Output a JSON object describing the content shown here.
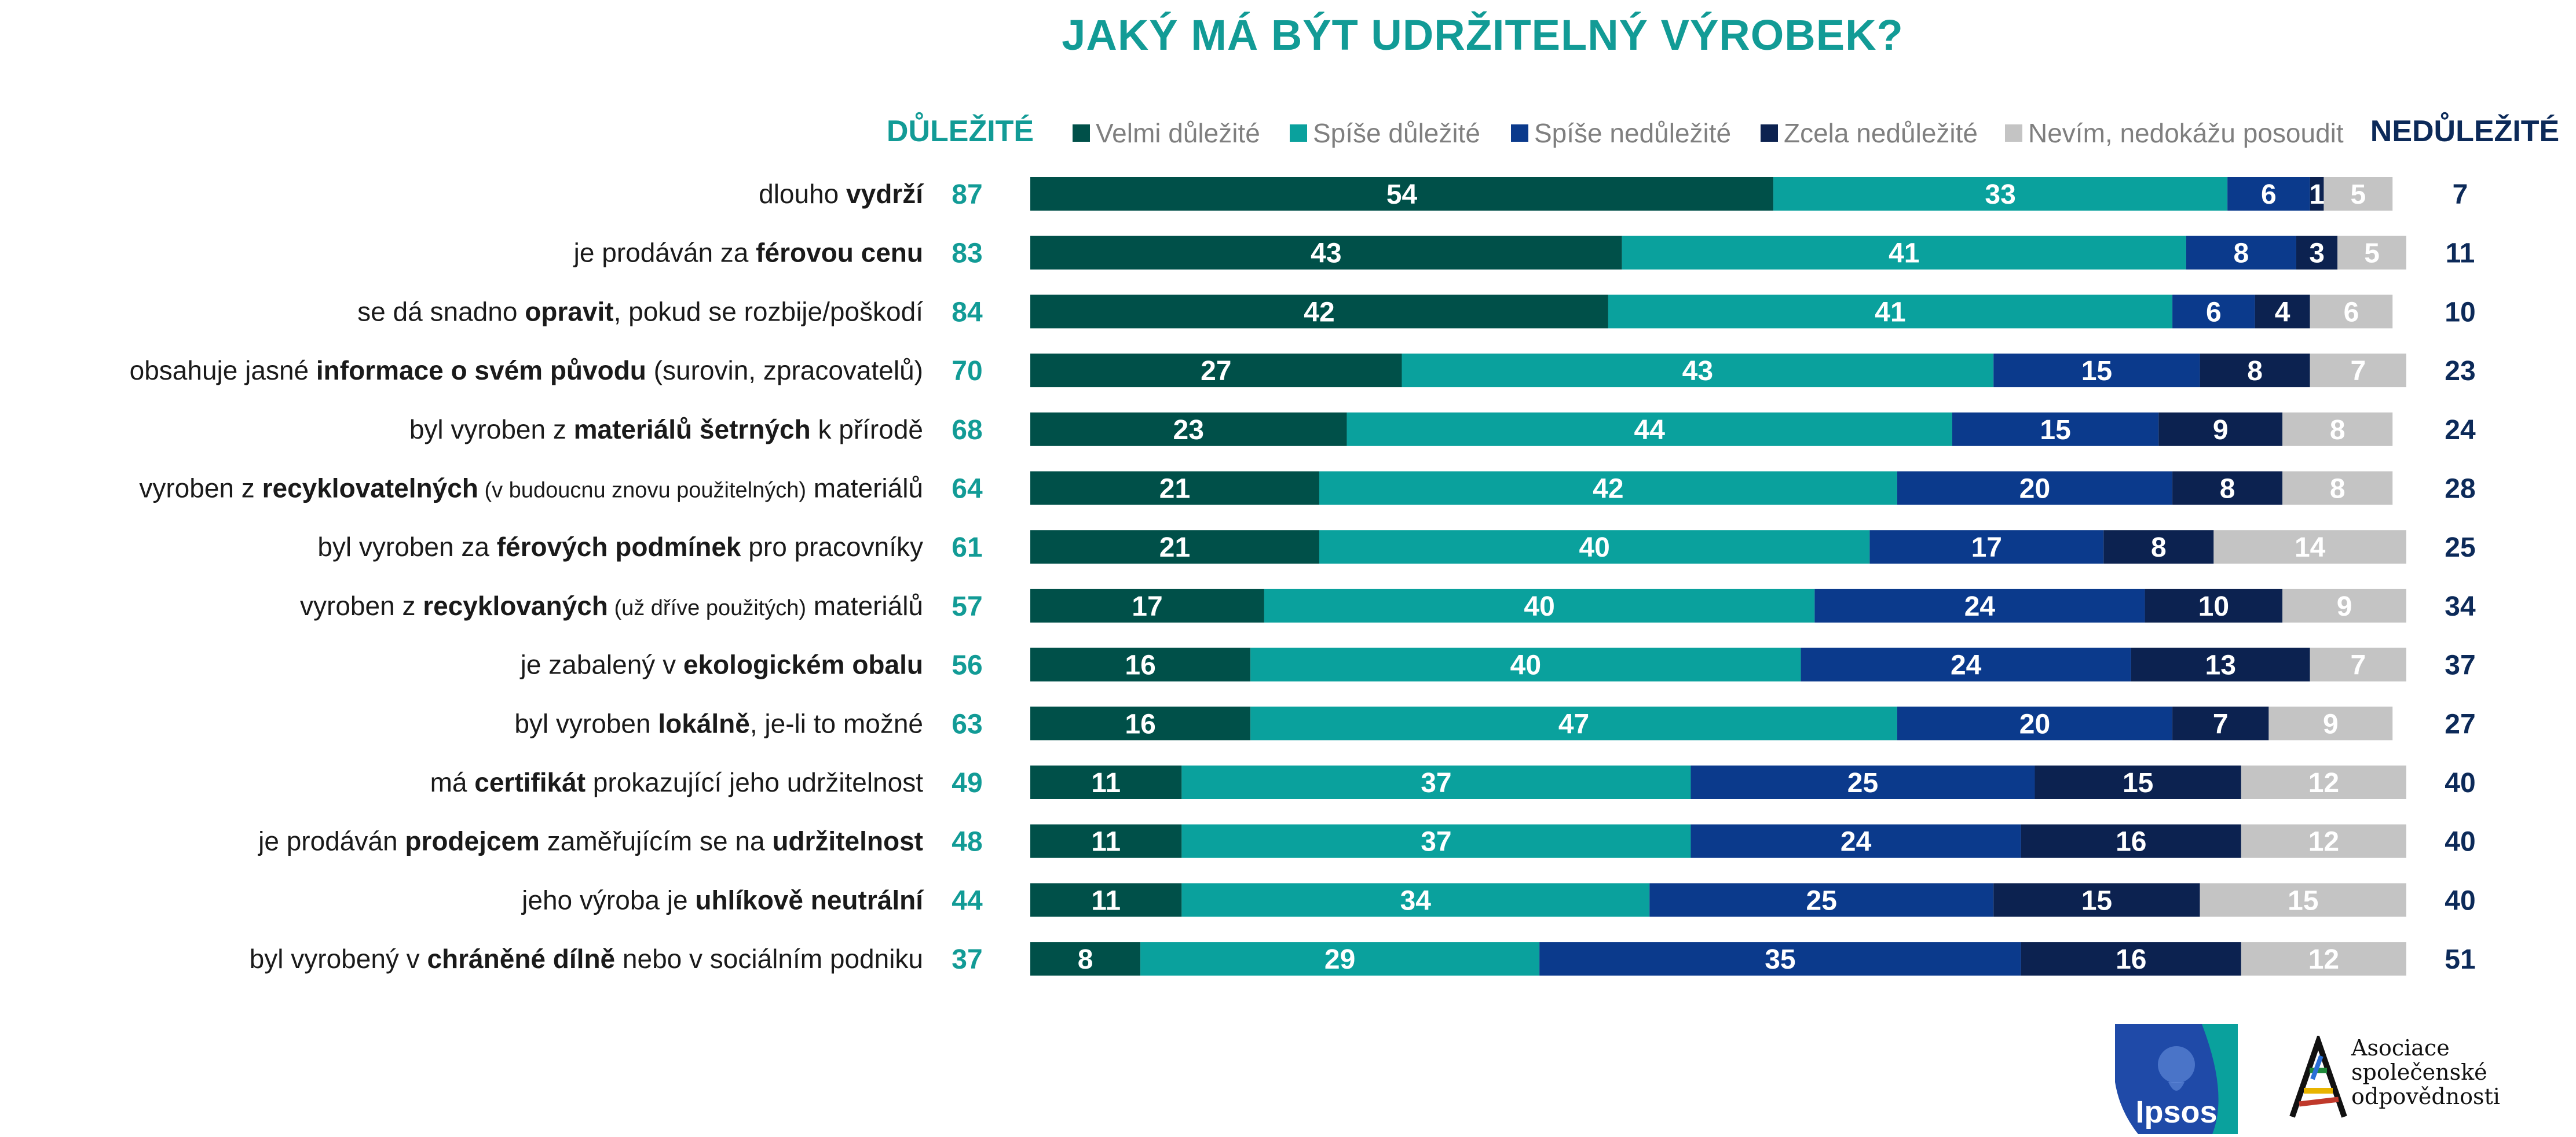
{
  "title": "JAKÝ MÁ BÝT UDRŽITELNÝ VÝROBEK?",
  "header_important": "DŮLEŽITÉ",
  "header_unimportant": "NEDŮLEŽITÉ",
  "colors": {
    "title": "#129b96",
    "important": "#129b96",
    "unimportant": "#0c2a59",
    "velmi": "#005049",
    "spise_dulezite": "#0aa19d",
    "spise_nedulezite": "#0b3a8c",
    "zcela": "#0c2250",
    "nevim": "#c4c4c4"
  },
  "logos": {
    "ipsos": "Ipsos",
    "asoc_lines": [
      "Asociace",
      "společenské",
      "odpovědnosti"
    ]
  },
  "chart_data": {
    "type": "bar",
    "orientation": "horizontal",
    "stacked": true,
    "title": "JAKÝ MÁ BÝT UDRŽITELNÝ VÝROBEK?",
    "xlim": [
      0,
      100
    ],
    "legend_position": "top",
    "series": [
      {
        "name": "Velmi důležité",
        "color": "#005049",
        "values": [
          54,
          43,
          42,
          27,
          23,
          21,
          21,
          17,
          16,
          16,
          11,
          11,
          11,
          8
        ]
      },
      {
        "name": "Spíše důležité",
        "color": "#0aa19d",
        "values": [
          33,
          41,
          41,
          43,
          44,
          42,
          40,
          40,
          40,
          47,
          37,
          37,
          34,
          29
        ]
      },
      {
        "name": "Spíše nedůležité",
        "color": "#0b3a8c",
        "values": [
          6,
          8,
          6,
          15,
          15,
          20,
          17,
          24,
          24,
          20,
          25,
          24,
          25,
          35
        ]
      },
      {
        "name": "Zcela nedůležité",
        "color": "#0c2250",
        "values": [
          1,
          3,
          4,
          8,
          9,
          8,
          8,
          10,
          13,
          7,
          15,
          16,
          15,
          16
        ]
      },
      {
        "name": "Nevím, nedokážu posoudit",
        "color": "#c4c4c4",
        "values": [
          5,
          5,
          6,
          7,
          8,
          8,
          14,
          9,
          7,
          9,
          12,
          12,
          15,
          12
        ]
      }
    ],
    "important_totals": [
      87,
      83,
      84,
      70,
      68,
      64,
      61,
      57,
      56,
      63,
      49,
      48,
      44,
      37
    ],
    "unimportant_totals": [
      7,
      11,
      10,
      23,
      24,
      28,
      25,
      34,
      37,
      27,
      40,
      40,
      40,
      51
    ],
    "categories": [
      [
        {
          "t": "dlouho "
        },
        {
          "t": "vydrží",
          "b": true
        }
      ],
      [
        {
          "t": "je prodáván za "
        },
        {
          "t": "férovou cenu",
          "b": true
        }
      ],
      [
        {
          "t": "se dá snadno "
        },
        {
          "t": "opravit",
          "b": true
        },
        {
          "t": ", pokud se rozbije/poškodí"
        }
      ],
      [
        {
          "t": "obsahuje jasné "
        },
        {
          "t": "informace o svém původu",
          "b": true
        },
        {
          "t": " (surovin, zpracovatelů)"
        }
      ],
      [
        {
          "t": "byl vyroben z "
        },
        {
          "t": "materiálů šetrných",
          "b": true
        },
        {
          "t": " k přírodě"
        }
      ],
      [
        {
          "t": "vyroben z "
        },
        {
          "t": "recyklovatelných",
          "b": true
        },
        {
          "t": " (v budoucnu znovu použitelných)",
          "s": true
        },
        {
          "t": " materiálů"
        }
      ],
      [
        {
          "t": "byl vyroben za "
        },
        {
          "t": "férových podmínek",
          "b": true
        },
        {
          "t": " pro pracovníky"
        }
      ],
      [
        {
          "t": "vyroben z "
        },
        {
          "t": "recyklovaných",
          "b": true
        },
        {
          "t": " (už dříve použitých)",
          "s": true
        },
        {
          "t": " materiálů"
        }
      ],
      [
        {
          "t": "je zabalený v "
        },
        {
          "t": "ekologickém obalu",
          "b": true
        }
      ],
      [
        {
          "t": "byl vyroben "
        },
        {
          "t": "lokálně",
          "b": true
        },
        {
          "t": ", je-li to možné"
        }
      ],
      [
        {
          "t": "má "
        },
        {
          "t": "certifikát",
          "b": true
        },
        {
          "t": " prokazující jeho udržitelnost"
        }
      ],
      [
        {
          "t": "je prodáván "
        },
        {
          "t": "prodejcem",
          "b": true
        },
        {
          "t": " zaměřujícím se na "
        },
        {
          "t": "udržitelnost",
          "b": true
        }
      ],
      [
        {
          "t": "jeho výroba je "
        },
        {
          "t": "uhlíkově neutrální",
          "b": true
        }
      ],
      [
        {
          "t": "byl vyrobený v "
        },
        {
          "t": "chráněné dílně",
          "b": true
        },
        {
          "t": " nebo v sociálním podniku"
        }
      ]
    ]
  }
}
